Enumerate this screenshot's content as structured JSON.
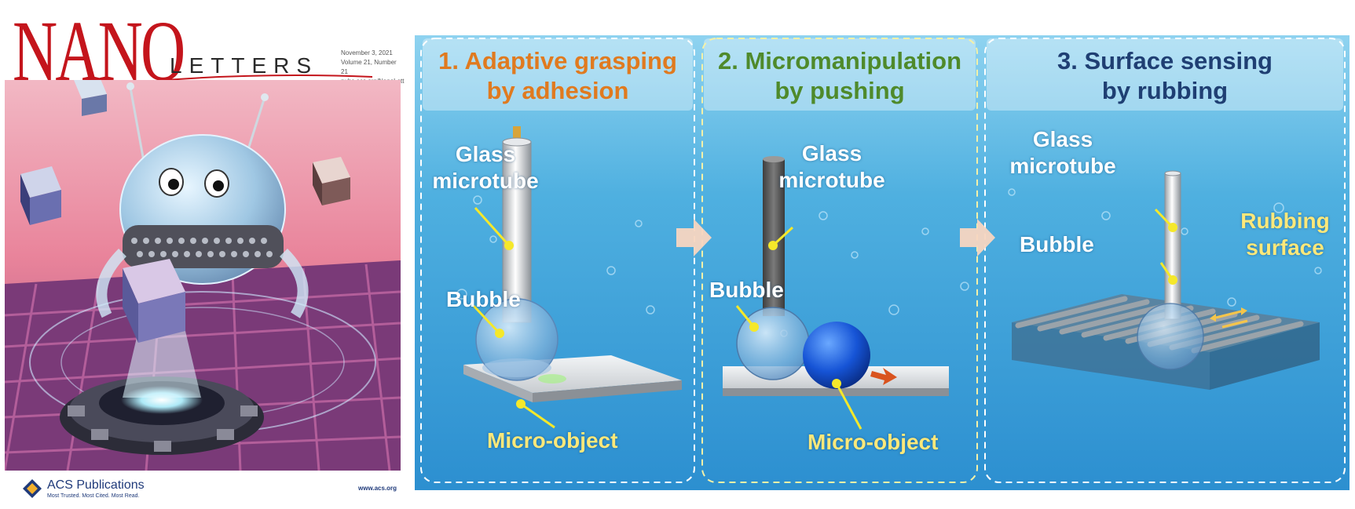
{
  "cover": {
    "title": "NANO",
    "subtitle": "LETTERS",
    "issue_info": "November 3, 2021\nVolume 21, Number 21\npubs.acs.org/NanoLett",
    "publisher": "ACS Publications",
    "tagline": "Most Trusted. Most Cited. Most Read.",
    "url": "www.acs.org"
  },
  "diagram": {
    "panels": [
      {
        "title": "1. Adaptive grasping\nby adhesion",
        "title_color": "#e07a1f",
        "labels": {
          "tube": "Glass\nmicrotube",
          "bubble": "Bubble",
          "object": "Micro-object"
        }
      },
      {
        "title": "2. Micromanipulation\nby pushing",
        "title_color": "#4f8a2b",
        "labels": {
          "tube": "Glass\nmicrotube",
          "bubble": "Bubble",
          "object": "Micro-object"
        }
      },
      {
        "title": "3. Surface sensing\nby rubbing",
        "title_color": "#1f3f73",
        "labels": {
          "tube": "Glass\nmicrotube",
          "bubble": "Bubble",
          "surface": "Rubbing\nsurface"
        }
      }
    ]
  },
  "colors": {
    "water_light": "#6fc0e6",
    "water_dark": "#1e7fbf",
    "cover_red": "#c4151c",
    "pointer": "#f5e82a"
  }
}
